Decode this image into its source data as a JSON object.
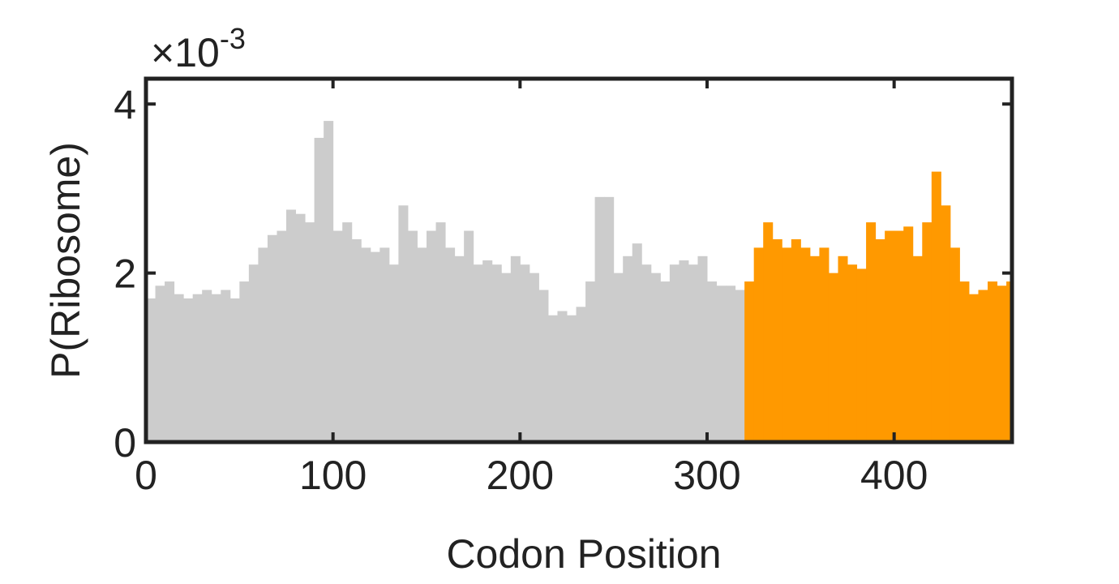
{
  "chart_data": {
    "type": "histogram",
    "x_label": "Codon Position",
    "y_label": "P(Ribosome)",
    "y_multiplier": {
      "base": "×10",
      "exponent": "-3"
    },
    "xlim": [
      0,
      463
    ],
    "ylim": [
      0,
      4.3
    ],
    "xticks": [
      0,
      100,
      200,
      300,
      400
    ],
    "yticks": [
      0,
      2,
      4
    ],
    "series": [
      {
        "color": "#cccccc",
        "bins": [
          0,
          5,
          10,
          15,
          20,
          25,
          30,
          35,
          40,
          45,
          50,
          55,
          60,
          65,
          70,
          75,
          80,
          85,
          90,
          95,
          100,
          105,
          110,
          115,
          120,
          125,
          130,
          135,
          140,
          145,
          150,
          155,
          160,
          165,
          170,
          175,
          180,
          185,
          190,
          195,
          200,
          205,
          210,
          215,
          220,
          225,
          230,
          235,
          240,
          245,
          250,
          255,
          260,
          265,
          270,
          275,
          280,
          285,
          290,
          295,
          300,
          305,
          310,
          315,
          320
        ],
        "values": [
          1.7,
          1.85,
          1.9,
          1.75,
          1.7,
          1.75,
          1.8,
          1.75,
          1.8,
          1.7,
          1.9,
          2.1,
          2.3,
          2.45,
          2.5,
          2.75,
          2.7,
          2.6,
          3.6,
          3.8,
          2.5,
          2.6,
          2.4,
          2.3,
          2.25,
          2.3,
          2.1,
          2.8,
          2.5,
          2.3,
          2.5,
          2.6,
          2.3,
          2.2,
          2.5,
          2.1,
          2.15,
          2.1,
          2.0,
          2.2,
          2.1,
          2.0,
          1.8,
          1.5,
          1.55,
          1.5,
          1.6,
          1.9,
          2.9,
          2.9,
          2.0,
          2.2,
          2.35,
          2.1,
          2.0,
          1.9,
          2.1,
          2.15,
          2.1,
          2.2,
          1.9,
          1.85,
          1.85,
          1.8
        ]
      },
      {
        "color": "#ff9900",
        "bins": [
          320,
          325,
          330,
          335,
          340,
          345,
          350,
          355,
          360,
          365,
          370,
          375,
          380,
          385,
          390,
          395,
          400,
          405,
          410,
          415,
          420,
          425,
          430,
          435,
          440,
          445,
          450,
          455,
          460,
          463
        ],
        "values": [
          1.9,
          2.3,
          2.6,
          2.4,
          2.3,
          2.4,
          2.3,
          2.2,
          2.3,
          2.0,
          2.2,
          2.1,
          2.05,
          2.6,
          2.4,
          2.5,
          2.5,
          2.55,
          2.2,
          2.6,
          3.2,
          2.8,
          2.3,
          1.9,
          1.75,
          1.8,
          1.9,
          1.85,
          1.9
        ]
      }
    ]
  }
}
